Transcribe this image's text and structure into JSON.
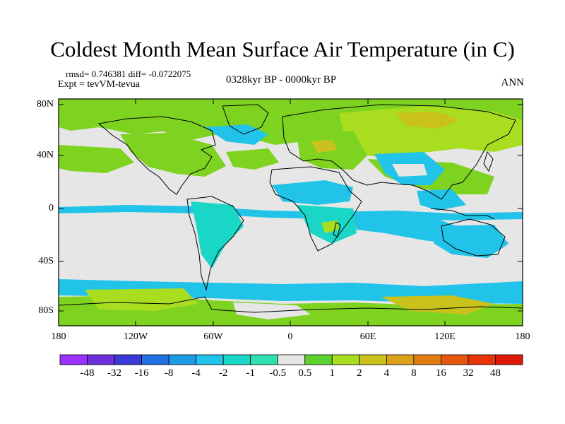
{
  "header": {
    "title": "Coldest Month Mean Surface Air Temperature (in C)",
    "stats": "rmsd= 0.746381  diff= -0.0722075",
    "expt": "Expt = tevVM-tevua",
    "period": "0328kyr BP - 0000kyr BP",
    "season": "ANN"
  },
  "axes": {
    "lat_labels": [
      "80N",
      "40N",
      "0",
      "40S",
      "80S"
    ],
    "lon_labels": [
      "180",
      "120W",
      "60W",
      "0",
      "60E",
      "120E",
      "180"
    ]
  },
  "colorbar": {
    "labels": [
      "-48",
      "-32",
      "-16",
      "-8",
      "-4",
      "-2",
      "-1",
      "-0.5",
      "0.5",
      "1",
      "2",
      "4",
      "8",
      "16",
      "32",
      "48"
    ],
    "colors": [
      "#9b30ff",
      "#6a2fd8",
      "#3a3ad6",
      "#1e6fe0",
      "#1e9be6",
      "#22c3e8",
      "#1ad6c6",
      "#2ee0b0",
      "#e6e6e6",
      "#5fd12f",
      "#a8dd20",
      "#c9c21c",
      "#d9a21a",
      "#e07c12",
      "#e4580c",
      "#e6330a",
      "#e01808"
    ]
  },
  "colors": {
    "neutral": "#e6e6e6",
    "green": "#7ed321",
    "lime": "#a8dd20",
    "olive": "#c9c21c",
    "cyan": "#22c3e8",
    "aqua": "#1ad6c6",
    "coast": "#000000"
  }
}
